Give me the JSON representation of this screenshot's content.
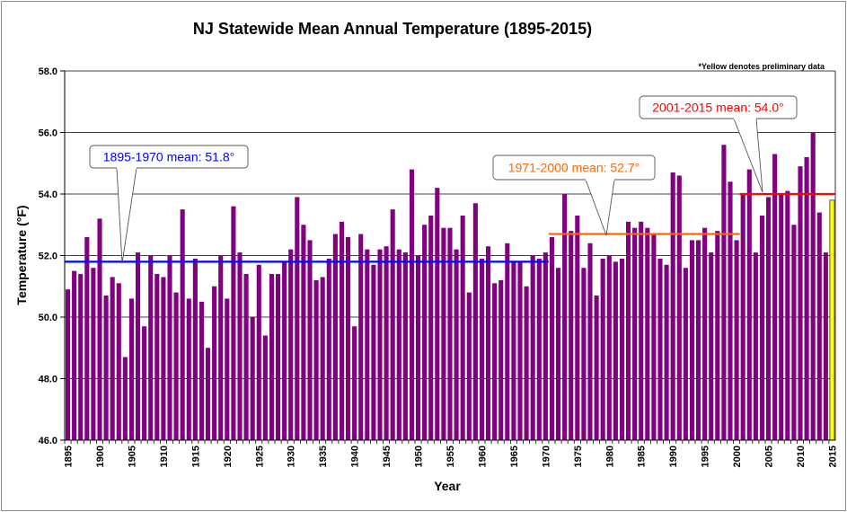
{
  "chart_data": {
    "type": "bar",
    "title": "NJ Statewide Mean Annual Temperature (1895-2015)",
    "xlabel": "Year",
    "ylabel": "Temperature (°F)",
    "note": "*Yellow denotes preliminary data",
    "ylim": [
      46.0,
      58.0
    ],
    "yticks": [
      "46.0",
      "48.0",
      "50.0",
      "52.0",
      "54.0",
      "56.0",
      "58.0"
    ],
    "xticks": [
      "1895",
      "1900",
      "1905",
      "1910",
      "1915",
      "1920",
      "1925",
      "1930",
      "1935",
      "1940",
      "1945",
      "1950",
      "1955",
      "1960",
      "1965",
      "1970",
      "1975",
      "1980",
      "1985",
      "1990",
      "1995",
      "2000",
      "2005",
      "2010",
      "2015"
    ],
    "x": [
      1895,
      1896,
      1897,
      1898,
      1899,
      1900,
      1901,
      1902,
      1903,
      1904,
      1905,
      1906,
      1907,
      1908,
      1909,
      1910,
      1911,
      1912,
      1913,
      1914,
      1915,
      1916,
      1917,
      1918,
      1919,
      1920,
      1921,
      1922,
      1923,
      1924,
      1925,
      1926,
      1927,
      1928,
      1929,
      1930,
      1931,
      1932,
      1933,
      1934,
      1935,
      1936,
      1937,
      1938,
      1939,
      1940,
      1941,
      1942,
      1943,
      1944,
      1945,
      1946,
      1947,
      1948,
      1949,
      1950,
      1951,
      1952,
      1953,
      1954,
      1955,
      1956,
      1957,
      1958,
      1959,
      1960,
      1961,
      1962,
      1963,
      1964,
      1965,
      1966,
      1967,
      1968,
      1969,
      1970,
      1971,
      1972,
      1973,
      1974,
      1975,
      1976,
      1977,
      1978,
      1979,
      1980,
      1981,
      1982,
      1983,
      1984,
      1985,
      1986,
      1987,
      1988,
      1989,
      1990,
      1991,
      1992,
      1993,
      1994,
      1995,
      1996,
      1997,
      1998,
      1999,
      2000,
      2001,
      2002,
      2003,
      2004,
      2005,
      2006,
      2007,
      2008,
      2009,
      2010,
      2011,
      2012,
      2013,
      2014,
      2015
    ],
    "values": [
      50.9,
      51.5,
      51.4,
      52.6,
      51.6,
      53.2,
      50.7,
      51.3,
      51.1,
      48.7,
      50.6,
      52.1,
      49.7,
      52.0,
      51.4,
      51.3,
      52.0,
      50.8,
      53.5,
      50.6,
      51.9,
      50.5,
      49.0,
      51.0,
      52.0,
      50.6,
      53.6,
      52.1,
      51.4,
      50.0,
      51.7,
      49.4,
      51.4,
      51.4,
      51.8,
      52.2,
      53.9,
      53.0,
      52.5,
      51.2,
      51.3,
      51.9,
      52.7,
      53.1,
      52.6,
      49.7,
      52.7,
      52.2,
      51.7,
      52.2,
      52.3,
      53.5,
      52.2,
      52.1,
      54.8,
      52.0,
      53.0,
      53.3,
      54.2,
      52.9,
      52.9,
      52.2,
      53.3,
      50.8,
      53.7,
      51.9,
      52.3,
      51.1,
      51.2,
      52.4,
      51.8,
      51.8,
      51.0,
      52.0,
      51.9,
      52.1,
      52.6,
      51.6,
      54.0,
      52.8,
      53.3,
      51.6,
      52.4,
      50.7,
      51.9,
      52.0,
      51.8,
      51.9,
      53.1,
      52.9,
      53.1,
      52.9,
      52.7,
      51.9,
      51.7,
      54.7,
      54.6,
      51.6,
      52.5,
      52.5,
      52.9,
      52.1,
      52.8,
      55.6,
      54.4,
      52.5,
      54.0,
      54.8,
      52.1,
      53.3,
      53.9,
      55.3,
      54.0,
      54.1,
      53.0,
      54.9,
      55.2,
      56.0,
      53.4,
      52.1,
      53.8
    ],
    "bar_color": "#800080",
    "preliminary_color": "#ffff00",
    "preliminary_years": [
      2015
    ],
    "means": [
      {
        "label": "1895-1970 mean:  51.8°",
        "value": 51.8,
        "start": 1895,
        "end": 1970,
        "color": "#0000ff"
      },
      {
        "label": "1971-2000 mean:  52.7°",
        "value": 52.7,
        "start": 1971,
        "end": 2000,
        "color": "#ff6600"
      },
      {
        "label": "2001-2015 mean:  54.0°",
        "value": 54.0,
        "start": 2001,
        "end": 2015,
        "color": "#ff0000"
      }
    ],
    "grid": true,
    "legend": "none"
  }
}
